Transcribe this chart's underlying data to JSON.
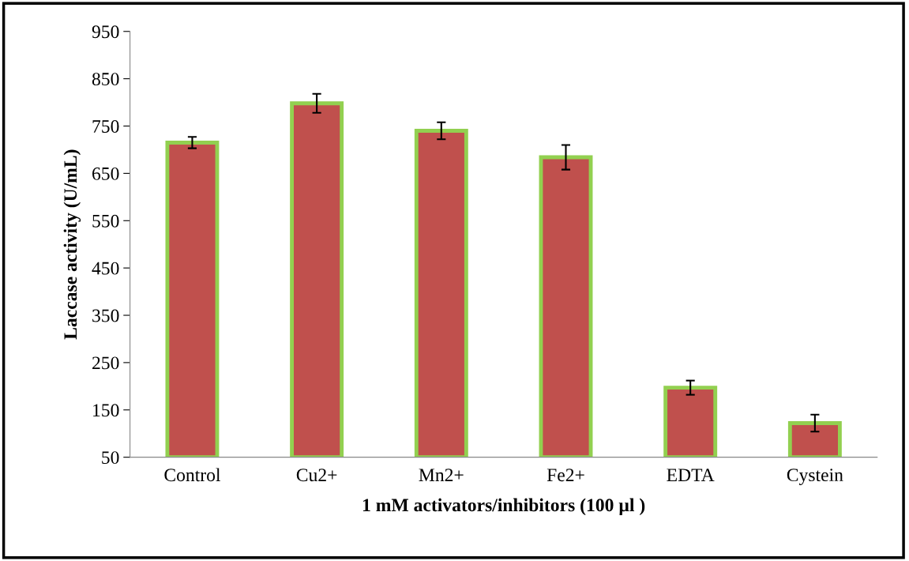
{
  "chart_data": {
    "type": "bar",
    "xlabel": "1 mM activators/inhibitors (100 µl )",
    "ylabel": "Laccase activity (U/mL)",
    "categories": [
      "Control",
      "Cu2+",
      "Mn2+",
      "Fe2+",
      "EDTA",
      "Cystein"
    ],
    "values": [
      715,
      798,
      740,
      684,
      197,
      122
    ],
    "errors": [
      12,
      20,
      18,
      26,
      15,
      18
    ],
    "color": "#c0504d",
    "ylim": [
      50,
      950
    ],
    "yticks": [
      50,
      150,
      250,
      350,
      450,
      550,
      650,
      750,
      850,
      950
    ],
    "grid": false
  }
}
